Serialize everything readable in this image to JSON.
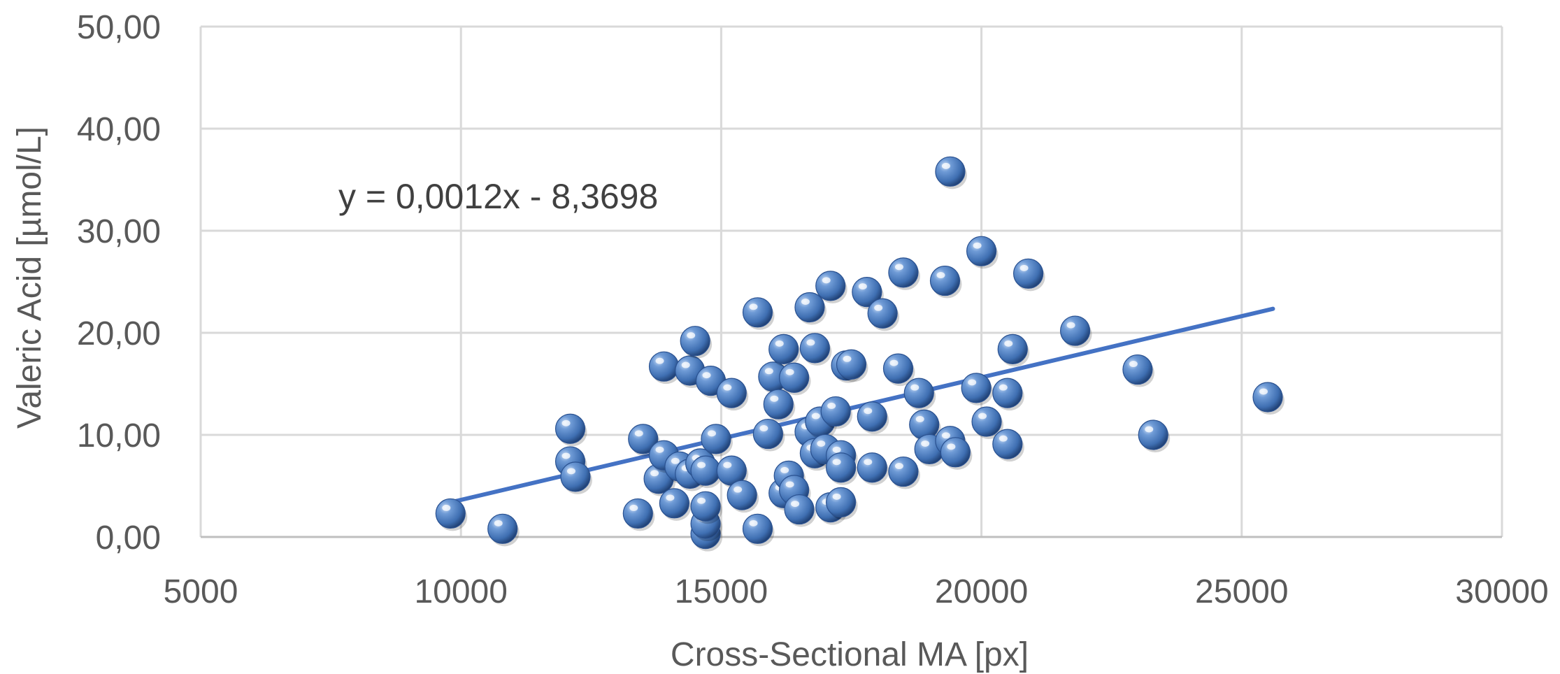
{
  "chart_data": {
    "type": "scatter",
    "title": "",
    "xlabel": "Cross-Sectional MA [px]",
    "ylabel": "Valeric Acid [µmol/L]",
    "xlim": [
      5000,
      30000
    ],
    "ylim": [
      0,
      50
    ],
    "x_ticks": [
      "5000",
      "10000",
      "15000",
      "20000",
      "25000",
      "30000"
    ],
    "y_ticks": [
      "0,00",
      "10,00",
      "20,00",
      "30,00",
      "40,00",
      "50,00"
    ],
    "grid": true,
    "marker_color": "#4a7bbf",
    "trendline": {
      "label": "y = 0,0012x - 8,3698",
      "slope": 0.0012,
      "intercept": -8.3698,
      "x_range": [
        9800,
        25600
      ],
      "color": "#4472c4"
    },
    "points": [
      [
        9800,
        2.3
      ],
      [
        10800,
        0.8
      ],
      [
        12100,
        10.6
      ],
      [
        12100,
        7.4
      ],
      [
        12200,
        5.9
      ],
      [
        13400,
        2.3
      ],
      [
        13500,
        9.6
      ],
      [
        13800,
        5.7
      ],
      [
        13900,
        8.0
      ],
      [
        13900,
        16.7
      ],
      [
        14100,
        3.3
      ],
      [
        14200,
        6.9
      ],
      [
        14400,
        6.2
      ],
      [
        14400,
        16.3
      ],
      [
        14500,
        19.2
      ],
      [
        14600,
        7.2
      ],
      [
        14700,
        6.5
      ],
      [
        14700,
        0.3
      ],
      [
        14700,
        1.3
      ],
      [
        14700,
        3.0
      ],
      [
        14800,
        15.3
      ],
      [
        14900,
        9.6
      ],
      [
        15200,
        6.5
      ],
      [
        15200,
        14.1
      ],
      [
        15400,
        4.1
      ],
      [
        15700,
        0.8
      ],
      [
        15700,
        22.0
      ],
      [
        15900,
        10.1
      ],
      [
        16000,
        15.7
      ],
      [
        16100,
        13.0
      ],
      [
        16200,
        4.3
      ],
      [
        16200,
        18.4
      ],
      [
        16300,
        6.0
      ],
      [
        16400,
        4.6
      ],
      [
        16400,
        15.6
      ],
      [
        16500,
        2.7
      ],
      [
        16700,
        10.3
      ],
      [
        16700,
        22.5
      ],
      [
        16800,
        8.2
      ],
      [
        16800,
        18.5
      ],
      [
        16900,
        11.3
      ],
      [
        17000,
        8.6
      ],
      [
        17100,
        2.9
      ],
      [
        17100,
        24.6
      ],
      [
        17200,
        12.3
      ],
      [
        17300,
        3.4
      ],
      [
        17300,
        8.0
      ],
      [
        17300,
        6.8
      ],
      [
        17400,
        16.8
      ],
      [
        17500,
        16.9
      ],
      [
        17800,
        24.0
      ],
      [
        17900,
        6.8
      ],
      [
        17900,
        11.8
      ],
      [
        18100,
        21.9
      ],
      [
        18400,
        16.5
      ],
      [
        18500,
        6.4
      ],
      [
        18500,
        25.9
      ],
      [
        18800,
        14.1
      ],
      [
        18900,
        11.0
      ],
      [
        19000,
        8.6
      ],
      [
        19300,
        25.1
      ],
      [
        19400,
        9.4
      ],
      [
        19500,
        8.3
      ],
      [
        19400,
        35.8
      ],
      [
        19900,
        14.6
      ],
      [
        20000,
        28.0
      ],
      [
        20100,
        11.3
      ],
      [
        20500,
        14.1
      ],
      [
        20500,
        9.1
      ],
      [
        20600,
        18.4
      ],
      [
        20900,
        25.8
      ],
      [
        21800,
        20.2
      ],
      [
        23000,
        16.4
      ],
      [
        23300,
        10.0
      ],
      [
        25500,
        13.7
      ]
    ]
  }
}
